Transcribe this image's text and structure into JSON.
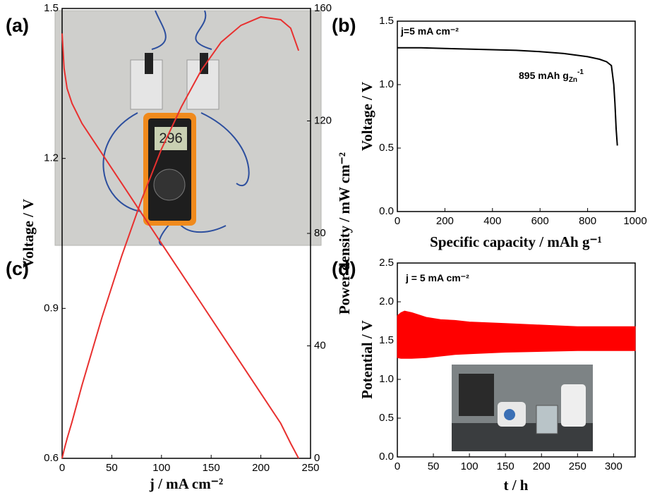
{
  "panel_labels": [
    "(a)",
    "(b)",
    "(c)",
    "(d)"
  ],
  "photo_a": {
    "display": "296"
  },
  "chart_data": [
    {
      "type": "line",
      "x": [
        0,
        100,
        200,
        300,
        400,
        500,
        600,
        700,
        800,
        850,
        880,
        900,
        910,
        915,
        920,
        925
      ],
      "series": [
        {
          "color": "#000000",
          "values": [
            1.29,
            1.29,
            1.285,
            1.28,
            1.275,
            1.27,
            1.26,
            1.245,
            1.22,
            1.2,
            1.18,
            1.15,
            1.0,
            0.85,
            0.65,
            0.52
          ]
        }
      ],
      "xlim": [
        0,
        1000
      ],
      "xticks": [
        0,
        200,
        400,
        600,
        800,
        1000
      ],
      "ylim": [
        0,
        1.5
      ],
      "yticks": [
        {
          "value": 0,
          "label": "0.0"
        },
        {
          "value": 0.5,
          "label": "0.5"
        },
        {
          "value": 1,
          "label": "1.0"
        },
        {
          "value": 1.5,
          "label": "1.5"
        }
      ],
      "xlabel": "Specific capacity / mAh g⁻¹",
      "ylabel": "Voltage / V",
      "annotations": [
        {
          "text": "j=5 mA cm⁻²"
        },
        {
          "text": "895 mAh g",
          "sub": "Zn",
          "sup": "-1"
        }
      ]
    },
    {
      "type": "line",
      "x": [
        0,
        2,
        5,
        10,
        20,
        40,
        60,
        80,
        100,
        120,
        140,
        160,
        180,
        200,
        220,
        230,
        238
      ],
      "series": [
        {
          "color": "#e8302f",
          "values": [
            1.45,
            1.38,
            1.34,
            1.31,
            1.27,
            1.21,
            1.15,
            1.09,
            1.03,
            0.97,
            0.91,
            0.85,
            0.79,
            0.73,
            0.67,
            0.63,
            0.6
          ]
        },
        {
          "color": "#e8302f",
          "axis": "y2",
          "values": [
            0,
            3,
            7,
            13,
            26,
            50,
            72,
            92,
            110,
            125,
            138,
            148,
            154,
            157,
            156,
            153,
            145
          ]
        }
      ],
      "xlim": [
        0,
        250
      ],
      "xticks": [
        0,
        50,
        100,
        150,
        200,
        250
      ],
      "ylim": [
        0.6,
        1.5
      ],
      "yticks": [
        0.6,
        0.9,
        1.2,
        1.5
      ],
      "y2lim": [
        0,
        160
      ],
      "y2ticks": [
        0,
        40,
        80,
        120,
        160
      ],
      "xlabel": "j / mA cm⁻²",
      "ylabel": "Voltage / V",
      "y2label": "Power density / mW cm⁻²"
    },
    {
      "type": "range",
      "x": [
        0,
        5,
        10,
        20,
        40,
        60,
        80,
        100,
        150,
        200,
        250,
        300,
        330
      ],
      "series": [
        {
          "color": "#ff0000",
          "high": [
            1.82,
            1.86,
            1.88,
            1.86,
            1.8,
            1.77,
            1.76,
            1.74,
            1.72,
            1.7,
            1.68,
            1.68,
            1.68
          ],
          "low": [
            1.28,
            1.27,
            1.27,
            1.27,
            1.28,
            1.3,
            1.32,
            1.33,
            1.35,
            1.36,
            1.37,
            1.37,
            1.37
          ]
        }
      ],
      "xlim": [
        0,
        330
      ],
      "xticks": [
        0,
        50,
        100,
        150,
        200,
        250,
        300
      ],
      "ylim": [
        0,
        2.5
      ],
      "yticks": [
        {
          "value": 0,
          "label": "0.0"
        },
        {
          "value": 0.5,
          "label": "0.5"
        },
        {
          "value": 1,
          "label": "1.0"
        },
        {
          "value": 1.5,
          "label": "1.5"
        },
        {
          "value": 2,
          "label": "2.0"
        },
        {
          "value": 2.5,
          "label": "2.5"
        }
      ],
      "xlabel": "t / h",
      "ylabel": "Potential / V",
      "annotations": [
        {
          "text": "j = 5 mA cm⁻²"
        }
      ]
    }
  ]
}
